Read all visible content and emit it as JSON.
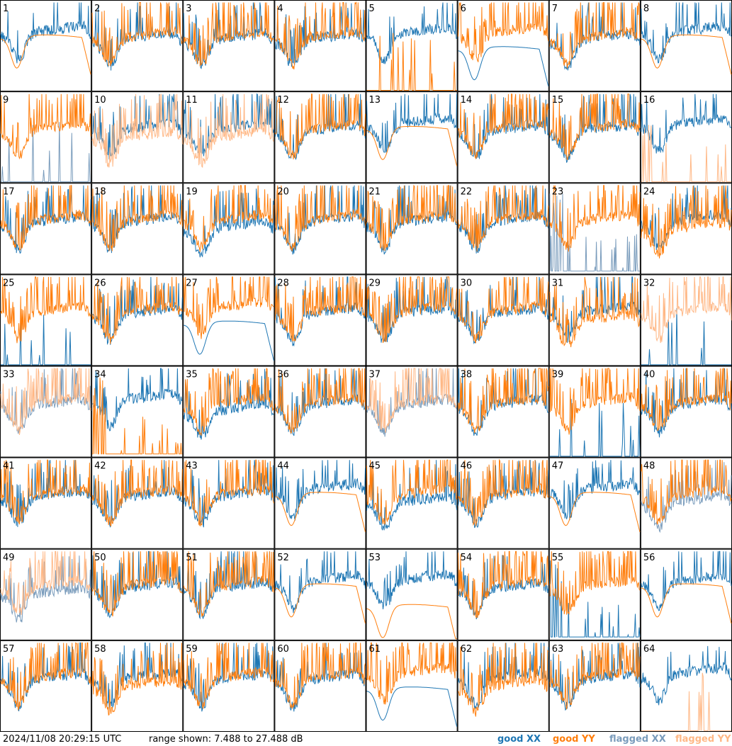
{
  "footer": {
    "timestamp": "2024/11/08 20:29:15 UTC",
    "range": "range shown: 7.488 to 27.488 dB"
  },
  "legend": [
    {
      "label": "good XX",
      "color": "#1f77b4"
    },
    {
      "label": "good YY",
      "color": "#ff7f0e"
    },
    {
      "label": "flagged XX",
      "color": "#7a9cbc"
    },
    {
      "label": "flagged YY",
      "color": "#ffb886"
    }
  ],
  "chart_data": {
    "type": "line",
    "ylim": [
      7.488,
      27.488
    ],
    "ylabel_unit": "dB",
    "grid_columns": 8,
    "grid_rows": 8,
    "panels": [
      {
        "id": "1",
        "xx": "good",
        "yy": "good",
        "style": "xx_high_yy_smooth"
      },
      {
        "id": "2",
        "xx": "good",
        "yy": "good",
        "style": "normal"
      },
      {
        "id": "3",
        "xx": "good",
        "yy": "good",
        "style": "normal"
      },
      {
        "id": "4",
        "xx": "good",
        "yy": "good",
        "style": "normal"
      },
      {
        "id": "5",
        "xx": "good",
        "yy": "good",
        "style": "yy_spikes_low"
      },
      {
        "id": "6",
        "xx": "good",
        "yy": "good",
        "style": "xx_smooth_dip"
      },
      {
        "id": "7",
        "xx": "good",
        "yy": "good",
        "style": "normal"
      },
      {
        "id": "8",
        "xx": "good",
        "yy": "good",
        "style": "xx_high_yy_smooth"
      },
      {
        "id": "9",
        "xx": "flagged",
        "yy": "good",
        "style": "xx_spikes_low"
      },
      {
        "id": "10",
        "xx": "good",
        "yy": "flagged",
        "style": "yy_offset_low"
      },
      {
        "id": "11",
        "xx": "good",
        "yy": "flagged",
        "style": "yy_offset_low"
      },
      {
        "id": "12",
        "xx": "good",
        "yy": "good",
        "style": "normal"
      },
      {
        "id": "13",
        "xx": "good",
        "yy": "good",
        "style": "xx_high_yy_smooth"
      },
      {
        "id": "14",
        "xx": "good",
        "yy": "good",
        "style": "normal"
      },
      {
        "id": "15",
        "xx": "good",
        "yy": "good",
        "style": "normal"
      },
      {
        "id": "16",
        "xx": "good",
        "yy": "flagged",
        "style": "yy_spikes_low"
      },
      {
        "id": "17",
        "xx": "good",
        "yy": "good",
        "style": "normal"
      },
      {
        "id": "18",
        "xx": "good",
        "yy": "good",
        "style": "normal"
      },
      {
        "id": "19",
        "xx": "good",
        "yy": "good",
        "style": "xx_offset_low"
      },
      {
        "id": "20",
        "xx": "good",
        "yy": "good",
        "style": "normal"
      },
      {
        "id": "21",
        "xx": "good",
        "yy": "good",
        "style": "normal"
      },
      {
        "id": "22",
        "xx": "good",
        "yy": "good",
        "style": "normal"
      },
      {
        "id": "23",
        "xx": "flagged",
        "yy": "good",
        "style": "xx_noisy_low"
      },
      {
        "id": "24",
        "xx": "good",
        "yy": "good",
        "style": "yy_offset_low"
      },
      {
        "id": "25",
        "xx": "good",
        "yy": "good",
        "style": "xx_spikes_low"
      },
      {
        "id": "26",
        "xx": "good",
        "yy": "good",
        "style": "normal"
      },
      {
        "id": "27",
        "xx": "good",
        "yy": "good",
        "style": "xx_smooth_dip"
      },
      {
        "id": "28",
        "xx": "good",
        "yy": "good",
        "style": "normal"
      },
      {
        "id": "29",
        "xx": "good",
        "yy": "good",
        "style": "normal"
      },
      {
        "id": "30",
        "xx": "good",
        "yy": "good",
        "style": "normal"
      },
      {
        "id": "31",
        "xx": "good",
        "yy": "good",
        "style": "yy_offset_low"
      },
      {
        "id": "32",
        "xx": "good",
        "yy": "flagged",
        "style": "xx_spikes_low"
      },
      {
        "id": "33",
        "xx": "flagged",
        "yy": "flagged",
        "style": "normal"
      },
      {
        "id": "34",
        "xx": "good",
        "yy": "good",
        "style": "yy_noisy_low"
      },
      {
        "id": "35",
        "xx": "good",
        "yy": "good",
        "style": "xx_offset_low"
      },
      {
        "id": "36",
        "xx": "good",
        "yy": "good",
        "style": "normal"
      },
      {
        "id": "37",
        "xx": "flagged",
        "yy": "flagged",
        "style": "normal"
      },
      {
        "id": "38",
        "xx": "good",
        "yy": "good",
        "style": "normal"
      },
      {
        "id": "39",
        "xx": "good",
        "yy": "good",
        "style": "xx_spikes_low"
      },
      {
        "id": "40",
        "xx": "good",
        "yy": "good",
        "style": "normal"
      },
      {
        "id": "41",
        "xx": "good",
        "yy": "good",
        "style": "normal"
      },
      {
        "id": "42",
        "xx": "good",
        "yy": "good",
        "style": "normal"
      },
      {
        "id": "43",
        "xx": "good",
        "yy": "good",
        "style": "normal"
      },
      {
        "id": "44",
        "xx": "good",
        "yy": "good",
        "style": "xx_high_yy_smooth"
      },
      {
        "id": "45",
        "xx": "good",
        "yy": "good",
        "style": "xx_offset_low"
      },
      {
        "id": "46",
        "xx": "good",
        "yy": "good",
        "style": "normal"
      },
      {
        "id": "47",
        "xx": "good",
        "yy": "good",
        "style": "xx_high_yy_smooth"
      },
      {
        "id": "48",
        "xx": "flagged",
        "yy": "good",
        "style": "xx_offset_low"
      },
      {
        "id": "49",
        "xx": "flagged",
        "yy": "flagged",
        "style": "xx_offset_low"
      },
      {
        "id": "50",
        "xx": "good",
        "yy": "good",
        "style": "normal"
      },
      {
        "id": "51",
        "xx": "good",
        "yy": "good",
        "style": "normal"
      },
      {
        "id": "52",
        "xx": "good",
        "yy": "good",
        "style": "xx_high_yy_smooth"
      },
      {
        "id": "53",
        "xx": "good",
        "yy": "good",
        "style": "yy_smooth_dip"
      },
      {
        "id": "54",
        "xx": "good",
        "yy": "good",
        "style": "normal"
      },
      {
        "id": "55",
        "xx": "good",
        "yy": "good",
        "style": "xx_noisy_low"
      },
      {
        "id": "56",
        "xx": "good",
        "yy": "good",
        "style": "xx_high_yy_smooth"
      },
      {
        "id": "57",
        "xx": "good",
        "yy": "good",
        "style": "normal"
      },
      {
        "id": "58",
        "xx": "good",
        "yy": "good",
        "style": "yy_offset_low"
      },
      {
        "id": "59",
        "xx": "good",
        "yy": "good",
        "style": "normal"
      },
      {
        "id": "60",
        "xx": "good",
        "yy": "good",
        "style": "normal"
      },
      {
        "id": "61",
        "xx": "good",
        "yy": "good",
        "style": "xx_smooth_dip"
      },
      {
        "id": "62",
        "xx": "good",
        "yy": "good",
        "style": "yy_offset_low"
      },
      {
        "id": "63",
        "xx": "good",
        "yy": "good",
        "style": "normal"
      },
      {
        "id": "64",
        "xx": "good",
        "yy": "flagged",
        "style": "yy_spikes_low"
      }
    ]
  }
}
